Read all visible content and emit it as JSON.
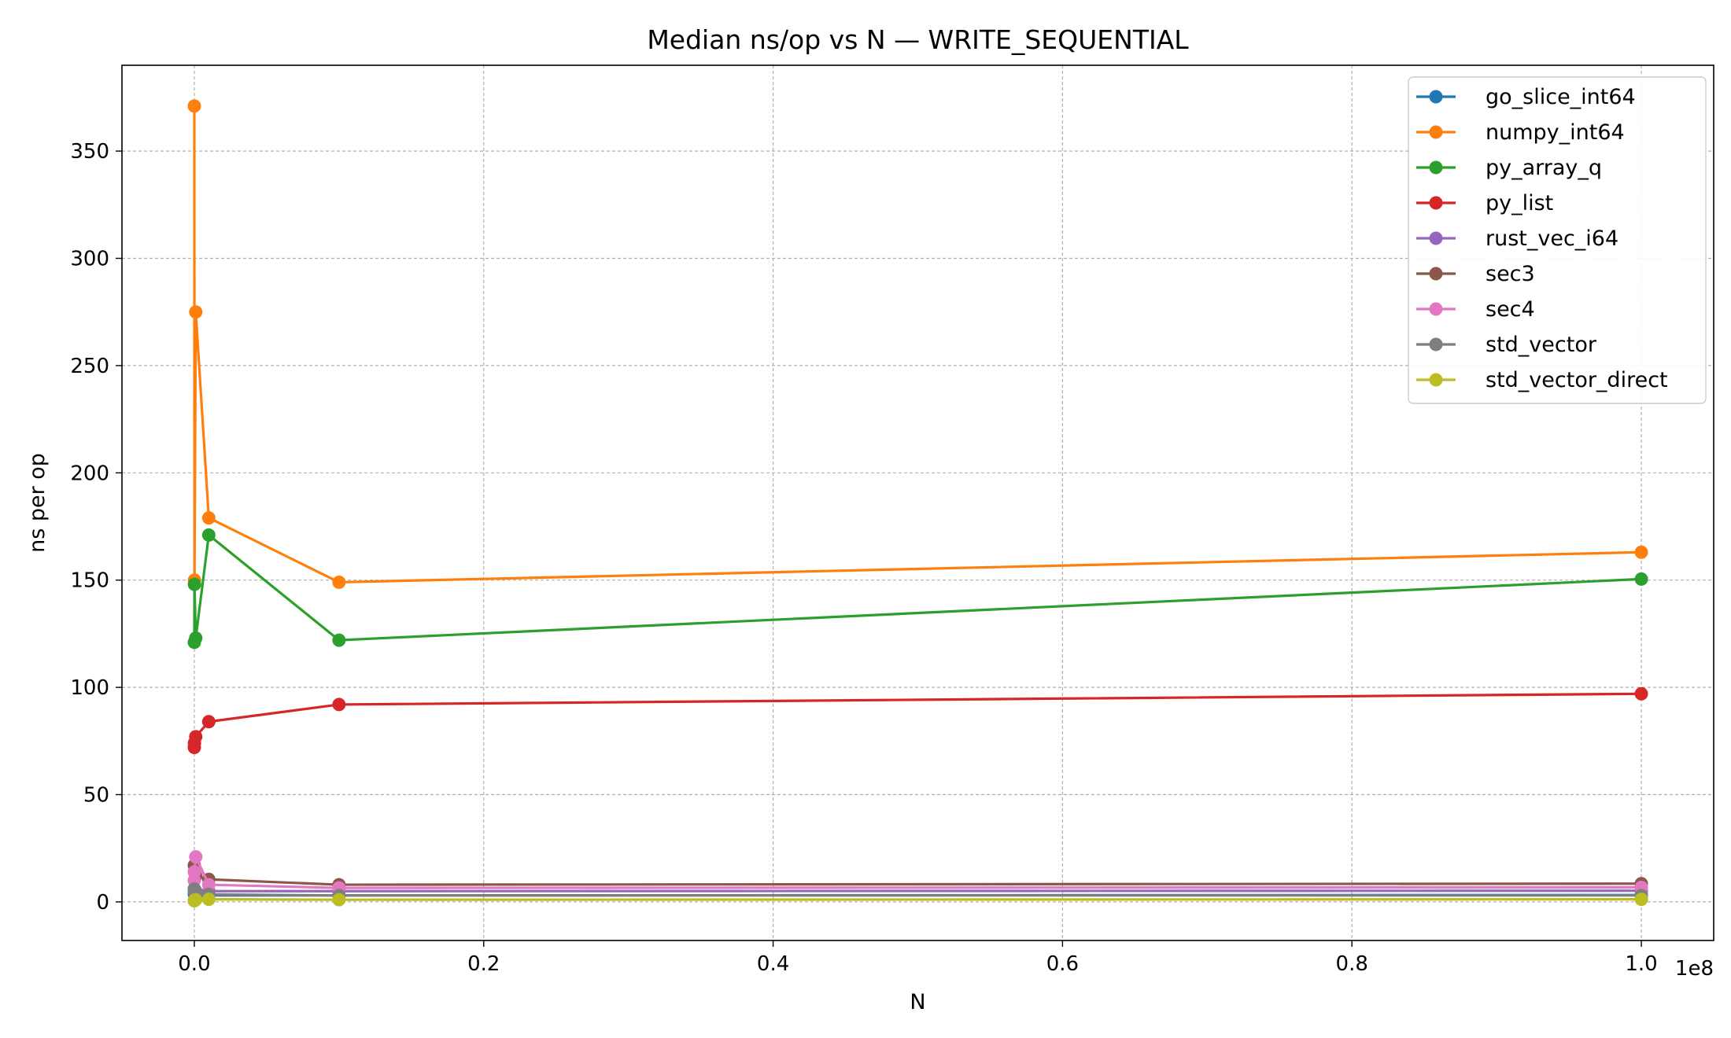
{
  "chart_data": {
    "type": "line",
    "title": "Median ns/op vs N — WRITE_SEQUENTIAL",
    "xlabel": "N",
    "ylabel": "ns per op",
    "x_offset_label": "1e8",
    "xlim": [
      -5000000,
      105000000
    ],
    "ylim": [
      -18,
      390
    ],
    "xticks": [
      0,
      20000000,
      40000000,
      60000000,
      80000000,
      100000000
    ],
    "xtick_labels": [
      "0.0",
      "0.2",
      "0.4",
      "0.6",
      "0.8",
      "1.0"
    ],
    "yticks": [
      0,
      50,
      100,
      150,
      200,
      250,
      300,
      350
    ],
    "ytick_labels": [
      "0",
      "50",
      "100",
      "150",
      "200",
      "250",
      "300",
      "350"
    ],
    "grid": true,
    "legend_position": "top-right",
    "x": [
      1000,
      10000,
      100000,
      1000000,
      10000000,
      100000000
    ],
    "series": [
      {
        "name": "go_slice_int64",
        "color": "#1f77b4",
        "values": [
          4.0,
          3.5,
          3.2,
          3.0,
          3.0,
          3.2
        ]
      },
      {
        "name": "numpy_int64",
        "color": "#ff7f0e",
        "values": [
          371,
          150,
          275,
          179,
          149,
          163
        ]
      },
      {
        "name": "py_array_q",
        "color": "#2ca02c",
        "values": [
          121,
          148,
          123,
          171,
          122,
          150.5
        ]
      },
      {
        "name": "py_list",
        "color": "#d62728",
        "values": [
          72,
          74,
          77,
          84,
          92,
          97
        ]
      },
      {
        "name": "rust_vec_i64",
        "color": "#9467bd",
        "values": [
          6.0,
          5.5,
          5.0,
          5.0,
          5.0,
          5.2
        ]
      },
      {
        "name": "sec3",
        "color": "#8c564b",
        "values": [
          17,
          14,
          12,
          10.5,
          8.0,
          8.5
        ]
      },
      {
        "name": "sec4",
        "color": "#e377c2",
        "values": [
          10,
          14,
          21,
          8,
          6.5,
          6.8
        ]
      },
      {
        "name": "std_vector",
        "color": "#7f7f7f",
        "values": [
          6.0,
          5.0,
          4.0,
          3.5,
          3.0,
          3.0
        ]
      },
      {
        "name": "std_vector_direct",
        "color": "#bcbd22",
        "values": [
          0.5,
          0.8,
          1.0,
          1.2,
          1.0,
          1.2
        ]
      }
    ]
  }
}
